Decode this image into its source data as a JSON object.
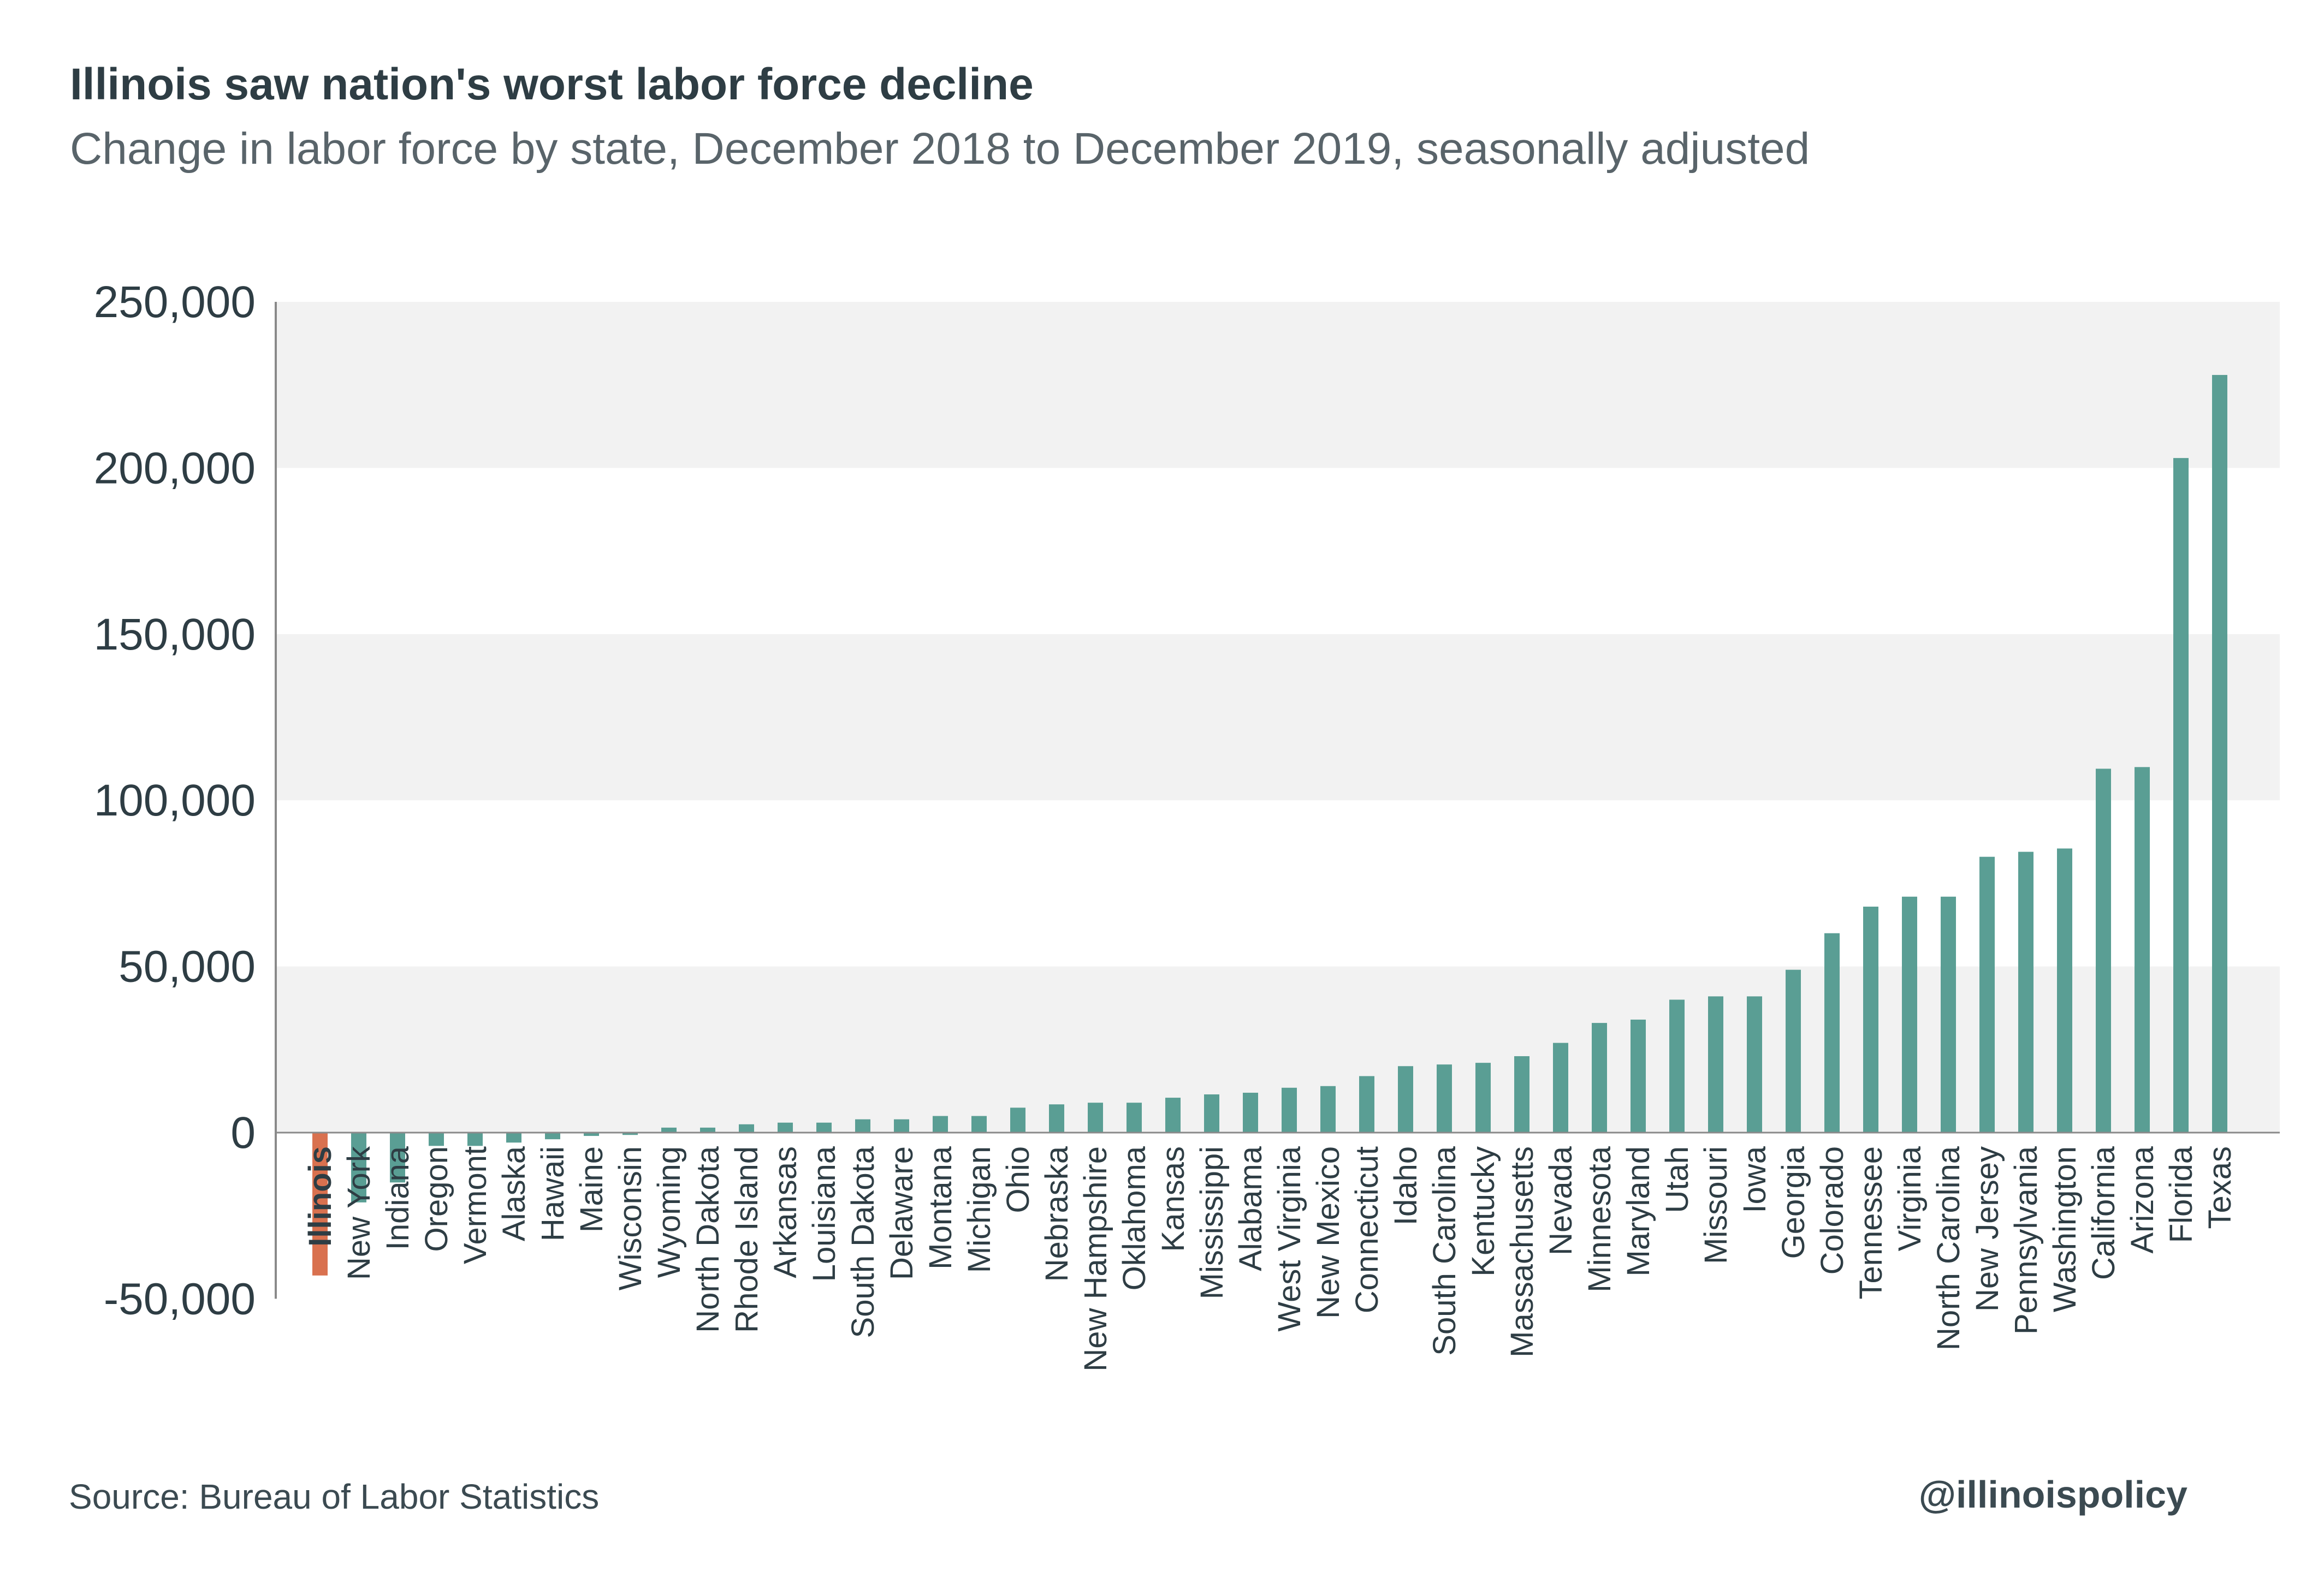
{
  "title": "Illinois saw nation's worst labor force decline",
  "subtitle": "Change in labor force by state, December 2018 to December 2019, seasonally adjusted",
  "source": "Source: Bureau of Labor Statistics",
  "handle": "@illinoispolicy",
  "colors": {
    "bar": "#5a9e94",
    "highlight": "#d9714f",
    "band": "#f2f2f2",
    "axis": "#8a8a8a",
    "text": "#2e3d44"
  },
  "chart_data": {
    "type": "bar",
    "title": "Illinois saw nation's worst labor force decline",
    "xlabel": "",
    "ylabel": "",
    "ylim": [
      -50000,
      250000
    ],
    "yticks": [
      250000,
      200000,
      150000,
      100000,
      50000,
      0,
      -50000
    ],
    "ytick_labels": [
      "250,000",
      "200,000",
      "150,000",
      "100,000",
      "50,000",
      "0",
      "-50,000"
    ],
    "grid": "alternating horizontal bands",
    "highlight_category": "Illinois",
    "categories": [
      "Illinois",
      "New York",
      "Indiana",
      "Oregon",
      "Vermont",
      "Alaska",
      "Hawaii",
      "Maine",
      "Wisconsin",
      "Wyoming",
      "North Dakota",
      "Rhode Island",
      "Arkansas",
      "Louisiana",
      "South Dakota",
      "Delaware",
      "Montana",
      "Michigan",
      "Ohio",
      "Nebraska",
      "New Hampshire",
      "Oklahoma",
      "Kansas",
      "Mississippi",
      "Alabama",
      "West Virginia",
      "New Mexico",
      "Connecticut",
      "Idaho",
      "South Carolina",
      "Kentucky",
      "Massachusetts",
      "Nevada",
      "Minnesota",
      "Maryland",
      "Utah",
      "Missouri",
      "Iowa",
      "Georgia",
      "Colorado",
      "Tennessee",
      "Virginia",
      "North Carolina",
      "New Jersey",
      "Pennsylvania",
      "Washington",
      "California",
      "Arizona",
      "Florida",
      "Texas"
    ],
    "values": [
      -43000,
      -21000,
      -15000,
      -4000,
      -4000,
      -3000,
      -2000,
      -1000,
      -700,
      1500,
      1500,
      2500,
      3000,
      3000,
      4000,
      4000,
      5000,
      5000,
      7500,
      8500,
      9000,
      9000,
      10500,
      11500,
      12000,
      13500,
      14000,
      17000,
      20000,
      20500,
      21000,
      23000,
      27000,
      33000,
      34000,
      40000,
      41000,
      41000,
      49000,
      60000,
      68000,
      71000,
      71000,
      83000,
      84500,
      85500,
      109500,
      110000,
      203000,
      228000
    ]
  }
}
